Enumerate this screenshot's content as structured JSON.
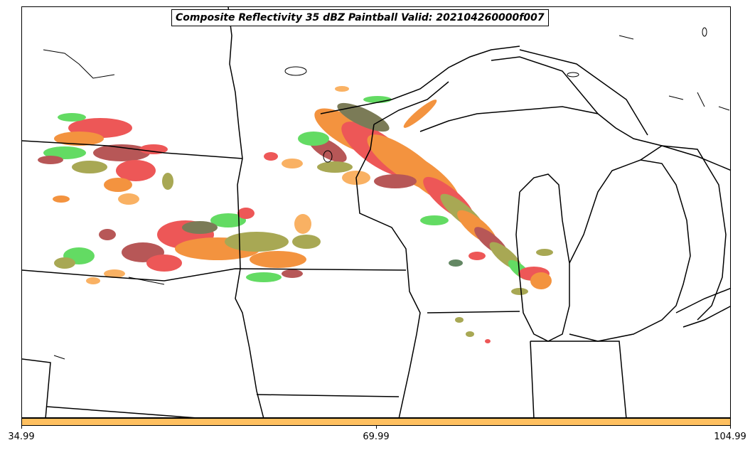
{
  "title": "Composite Reflectivity 35 dBZ Paintball Valid: 202104260000f007",
  "colorbar": {
    "color": "#ffc060",
    "ticks": [
      "34.99",
      "69.99",
      "104.99"
    ]
  },
  "map": {
    "boundary_color": "#000000",
    "paintball_colors": [
      "#e82020",
      "#f07000",
      "#30d030",
      "#f89830",
      "#8c8c1c",
      "#505020",
      "#a02020",
      "#306030"
    ]
  }
}
